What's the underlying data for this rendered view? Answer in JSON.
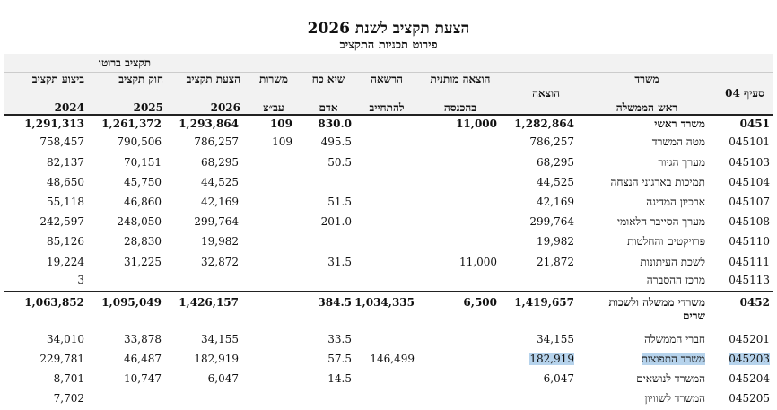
{
  "title": "הצעת תקציב לשנת 2026",
  "subtitle": "פירוט תכניות התקציב",
  "group_label": "תקציב ברוטו",
  "headers": {
    "section": "סעיף 04",
    "office_line1": "משרד",
    "office_line2": "ראש הממשלה",
    "expense": "הוצאה",
    "conditional_line1": "הוצאה מותנית",
    "conditional_line2": "בהכנסה",
    "commitment_line1": "הרשאה",
    "commitment_line2": "להתחייב",
    "manpower_line1": "שיא כח",
    "manpower_line2": "אדם",
    "positions_line1": "משרות",
    "positions_line2": "עב״צ",
    "proposal_line1": "הצעת תקציב",
    "proposal_line2": "2026",
    "law_line1": "חוק תקציב",
    "law_line2": "2025",
    "exec_line1": "ביצוע תקציב",
    "exec_line2": "2024"
  },
  "rows": [
    {
      "code": "0451",
      "name": "משרד ראשי",
      "expense": "1,282,864",
      "conditional": "11,000",
      "commitment": "",
      "manpower": "830.0",
      "positions": "109",
      "proposal": "1,293,864",
      "law": "1,261,372",
      "exec": "1,291,313",
      "total": true
    },
    {
      "code": "045101",
      "name": "מטה המשרד",
      "expense": "786,257",
      "conditional": "",
      "commitment": "",
      "manpower": "495.5",
      "positions": "109",
      "proposal": "786,257",
      "law": "790,506",
      "exec": "758,457"
    },
    {
      "code": "045103",
      "name": "מערך הגיור",
      "expense": "68,295",
      "conditional": "",
      "commitment": "",
      "manpower": "50.5",
      "positions": "",
      "proposal": "68,295",
      "law": "70,151",
      "exec": "82,137"
    },
    {
      "code": "045104",
      "name": "תמיכות בארגוני הנצחה",
      "expense": "44,525",
      "conditional": "",
      "commitment": "",
      "manpower": "",
      "positions": "",
      "proposal": "44,525",
      "law": "45,750",
      "exec": "48,650"
    },
    {
      "code": "045107",
      "name": "ארכיון המדינה",
      "expense": "42,169",
      "conditional": "",
      "commitment": "",
      "manpower": "51.5",
      "positions": "",
      "proposal": "42,169",
      "law": "46,860",
      "exec": "55,118"
    },
    {
      "code": "045108",
      "name": "מערך הסייבר הלאומי",
      "expense": "299,764",
      "conditional": "",
      "commitment": "",
      "manpower": "201.0",
      "positions": "",
      "proposal": "299,764",
      "law": "248,050",
      "exec": "242,597"
    },
    {
      "code": "045110",
      "name": "פרויקטים והחלטות",
      "expense": "19,982",
      "conditional": "",
      "commitment": "",
      "manpower": "",
      "positions": "",
      "proposal": "19,982",
      "law": "28,830",
      "exec": "85,126"
    },
    {
      "code": "045111",
      "name": "לשכת העיתונות",
      "expense": "21,872",
      "conditional": "11,000",
      "commitment": "",
      "manpower": "31.5",
      "positions": "",
      "proposal": "32,872",
      "law": "31,225",
      "exec": "19,224"
    },
    {
      "code": "045113",
      "name": "מרכז ההסברה",
      "expense": "",
      "conditional": "",
      "commitment": "",
      "manpower": "",
      "positions": "",
      "proposal": "",
      "law": "",
      "exec": "3"
    },
    {
      "code": "0452",
      "name": "משרדי ממשלה ולשכות",
      "name2": "שרים",
      "expense": "1,419,657",
      "conditional": "6,500",
      "commitment": "1,034,335",
      "manpower": "384.5",
      "positions": "",
      "proposal": "1,426,157",
      "law": "1,095,049",
      "exec": "1,063,852",
      "total": true
    },
    {
      "code": "045201",
      "name": "חברי הממשלה",
      "expense": "34,155",
      "conditional": "",
      "commitment": "",
      "manpower": "33.5",
      "positions": "",
      "proposal": "34,155",
      "law": "33,878",
      "exec": "34,010"
    },
    {
      "code": "045203",
      "name": "משרד התפוצות",
      "expense": "182,919",
      "conditional": "",
      "commitment": "146,499",
      "manpower": "57.5",
      "positions": "",
      "proposal": "182,919",
      "law": "46,487",
      "exec": "229,781",
      "highlight": true
    },
    {
      "code": "045204",
      "name": "המשרד לנושאים",
      "expense": "6,047",
      "conditional": "",
      "commitment": "",
      "manpower": "14.5",
      "positions": "",
      "proposal": "6,047",
      "law": "10,747",
      "exec": "8,701"
    },
    {
      "code": "045205",
      "name": "המשרד לשוויון",
      "expense": "",
      "conditional": "",
      "commitment": "",
      "manpower": "",
      "positions": "",
      "proposal": "",
      "law": "",
      "exec": "7,702"
    }
  ],
  "colors": {
    "header_bg": "#f2f2f2",
    "highlight": "#b6d3ec"
  }
}
